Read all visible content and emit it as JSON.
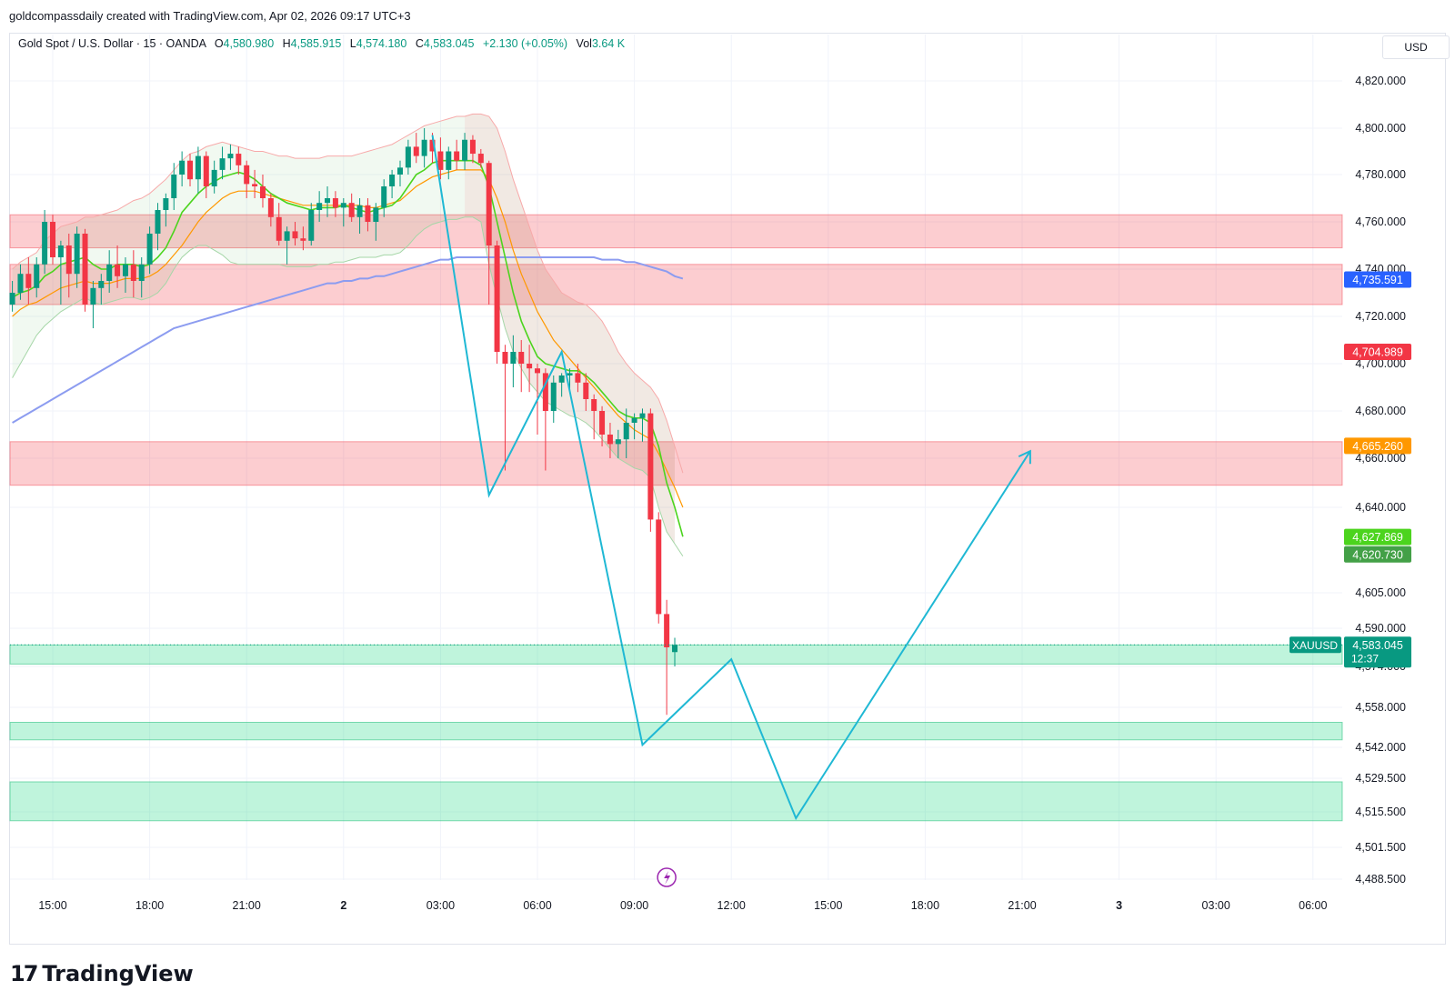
{
  "header": {
    "attribution": "goldcompassdaily created with TradingView.com, Apr 02, 2026 09:17 UTC+3"
  },
  "legend": {
    "symbol": "Gold Spot / U.S. Dollar · 15 · OANDA",
    "o_label": "O",
    "o_value": "4,580.980",
    "h_label": "H",
    "h_value": "4,585.915",
    "l_label": "L",
    "l_value": "4,574.180",
    "c_label": "C",
    "c_value": "4,583.045",
    "change": "+2.130 (+0.05%)",
    "vol_label": "Vol",
    "vol_value": "3.64 K"
  },
  "currency": "USD",
  "price_axis": {
    "ticks": [
      "4,820.000",
      "4,800.000",
      "4,780.000",
      "4,760.000",
      "4,740.000",
      "4,720.000",
      "4,700.000",
      "4,680.000",
      "4,660.000",
      "4,640.000",
      "4,605.000",
      "4,590.000",
      "4,574.000",
      "4,558.000",
      "4,542.000",
      "4,529.500",
      "4,515.500",
      "4,501.500",
      "4,488.500"
    ],
    "tick_values": [
      4820,
      4800,
      4780,
      4760,
      4740,
      4720,
      4700,
      4680,
      4660,
      4640,
      4605,
      4590,
      4574,
      4558,
      4542,
      4529.5,
      4515.5,
      4501.5,
      4488.5
    ]
  },
  "time_axis": {
    "labels": [
      "15:00",
      "18:00",
      "21:00",
      "2",
      "03:00",
      "06:00",
      "09:00",
      "12:00",
      "15:00",
      "18:00",
      "21:00",
      "3",
      "03:00",
      "06:00"
    ],
    "bold": [
      false,
      false,
      false,
      true,
      false,
      false,
      false,
      false,
      false,
      false,
      false,
      true,
      false,
      false
    ],
    "start": "15:00"
  },
  "price_tags": [
    {
      "label": "4,735.591",
      "color": "#2962ff",
      "price": 4735.591
    },
    {
      "label": "4,704.989",
      "color": "#f23645",
      "price": 4704.989
    },
    {
      "label": "4,665.260",
      "color": "#ff9800",
      "price": 4665.26
    },
    {
      "label": "4,627.869",
      "color": "#4cd41e",
      "price": 4627.869
    },
    {
      "label": "4,620.730",
      "color": "#43a047",
      "price": 4620.73
    }
  ],
  "current": {
    "symbol": "XAUUSD",
    "price": "4,583.045",
    "countdown": "12:37",
    "value": 4583.045,
    "color": "#089981"
  },
  "footer": {
    "logo_mark": "17",
    "logo_text": "TradingView"
  },
  "chart_data": {
    "type": "candlestick",
    "symbol": "XAUUSD",
    "timeframe": "15",
    "zones": [
      {
        "type": "resistance",
        "from": 4749,
        "to": 4763
      },
      {
        "type": "resistance",
        "from": 4725,
        "to": 4742
      },
      {
        "type": "resistance",
        "from": 4649,
        "to": 4667
      },
      {
        "type": "support",
        "from": 4575,
        "to": 4583
      },
      {
        "type": "support",
        "from": 4545,
        "to": 4552
      },
      {
        "type": "support",
        "from": 4512,
        "to": 4528
      }
    ],
    "forecast_path": [
      {
        "x": "Apr 2 02:45",
        "y": 4797
      },
      {
        "x": "Apr 2 04:30",
        "y": 4645
      },
      {
        "x": "Apr 2 06:45",
        "y": 4705
      },
      {
        "x": "Apr 2 09:15",
        "y": 4543
      },
      {
        "x": "Apr 2 12:00",
        "y": 4577
      },
      {
        "x": "Apr 2 14:00",
        "y": 4513
      },
      {
        "x": "Apr 2 21:15",
        "y": 4663
      }
    ],
    "candles": [
      [
        4725,
        4735,
        4722,
        4730
      ],
      [
        4730,
        4742,
        4727,
        4738
      ],
      [
        4738,
        4745,
        4725,
        4732
      ],
      [
        4732,
        4745,
        4728,
        4742
      ],
      [
        4742,
        4765,
        4738,
        4760
      ],
      [
        4760,
        4763,
        4742,
        4745
      ],
      [
        4745,
        4752,
        4725,
        4750
      ],
      [
        4750,
        4755,
        4728,
        4738
      ],
      [
        4738,
        4758,
        4732,
        4755
      ],
      [
        4755,
        4757,
        4722,
        4725
      ],
      [
        4725,
        4735,
        4715,
        4732
      ],
      [
        4732,
        4738,
        4725,
        4735
      ],
      [
        4735,
        4748,
        4730,
        4742
      ],
      [
        4742,
        4750,
        4732,
        4737
      ],
      [
        4737,
        4745,
        4730,
        4742
      ],
      [
        4742,
        4748,
        4728,
        4735
      ],
      [
        4735,
        4745,
        4728,
        4742
      ],
      [
        4742,
        4758,
        4738,
        4755
      ],
      [
        4755,
        4768,
        4748,
        4765
      ],
      [
        4765,
        4772,
        4758,
        4770
      ],
      [
        4770,
        4785,
        4765,
        4780
      ],
      [
        4780,
        4790,
        4775,
        4786
      ],
      [
        4786,
        4789,
        4775,
        4778
      ],
      [
        4778,
        4792,
        4772,
        4788
      ],
      [
        4788,
        4790,
        4770,
        4775
      ],
      [
        4775,
        4786,
        4772,
        4782
      ],
      [
        4782,
        4792,
        4778,
        4787
      ],
      [
        4787,
        4793,
        4782,
        4789
      ],
      [
        4789,
        4792,
        4780,
        4784
      ],
      [
        4784,
        4786,
        4770,
        4776
      ],
      [
        4776,
        4782,
        4770,
        4775
      ],
      [
        4775,
        4780,
        4766,
        4770
      ],
      [
        4770,
        4772,
        4758,
        4762
      ],
      [
        4762,
        4768,
        4750,
        4752
      ],
      [
        4752,
        4758,
        4742,
        4756
      ],
      [
        4756,
        4760,
        4750,
        4753
      ],
      [
        4753,
        4758,
        4748,
        4752
      ],
      [
        4752,
        4768,
        4750,
        4765
      ],
      [
        4765,
        4773,
        4760,
        4768
      ],
      [
        4768,
        4775,
        4762,
        4770
      ],
      [
        4770,
        4773,
        4762,
        4766
      ],
      [
        4766,
        4770,
        4758,
        4768
      ],
      [
        4768,
        4772,
        4760,
        4762
      ],
      [
        4762,
        4770,
        4755,
        4767
      ],
      [
        4767,
        4770,
        4756,
        4760
      ],
      [
        4760,
        4768,
        4752,
        4766
      ],
      [
        4766,
        4778,
        4762,
        4775
      ],
      [
        4775,
        4782,
        4770,
        4780
      ],
      [
        4780,
        4786,
        4775,
        4783
      ],
      [
        4783,
        4795,
        4780,
        4792
      ],
      [
        4792,
        4798,
        4785,
        4788
      ],
      [
        4788,
        4800,
        4783,
        4795
      ],
      [
        4795,
        4798,
        4785,
        4790
      ],
      [
        4790,
        4796,
        4778,
        4782
      ],
      [
        4782,
        4792,
        4778,
        4790
      ],
      [
        4790,
        4795,
        4782,
        4786
      ],
      [
        4786,
        4798,
        4782,
        4795
      ],
      [
        4795,
        4797,
        4785,
        4789
      ],
      [
        4789,
        4791,
        4783,
        4785
      ],
      [
        4785,
        4786,
        4725,
        4750
      ],
      [
        4750,
        4752,
        4700,
        4705
      ],
      [
        4705,
        4708,
        4655,
        4700
      ],
      [
        4700,
        4712,
        4690,
        4705
      ],
      [
        4705,
        4710,
        4688,
        4700
      ],
      [
        4700,
        4708,
        4688,
        4698
      ],
      [
        4698,
        4700,
        4670,
        4696
      ],
      [
        4696,
        4698,
        4655,
        4680
      ],
      [
        4680,
        4695,
        4675,
        4692
      ],
      [
        4692,
        4696,
        4686,
        4695
      ],
      [
        4695,
        4698,
        4688,
        4696
      ],
      [
        4696,
        4700,
        4688,
        4692
      ],
      [
        4692,
        4696,
        4680,
        4685
      ],
      [
        4685,
        4687,
        4668,
        4680
      ],
      [
        4680,
        4682,
        4665,
        4670
      ],
      [
        4670,
        4675,
        4660,
        4666
      ],
      [
        4666,
        4672,
        4660,
        4668
      ],
      [
        4668,
        4681,
        4660,
        4675
      ],
      [
        4675,
        4679,
        4668,
        4677
      ],
      [
        4677,
        4681,
        4667,
        4679
      ],
      [
        4679,
        4681,
        4630,
        4635
      ],
      [
        4635,
        4638,
        4592,
        4596
      ],
      [
        4596,
        4602,
        4555,
        4582
      ],
      [
        4580,
        4586,
        4574,
        4583
      ]
    ],
    "ema_green": [
      4728,
      4730,
      4731,
      4733,
      4737,
      4739,
      4742,
      4743,
      4744,
      4745,
      4742,
      4740,
      4740,
      4742,
      4742,
      4742,
      4741,
      4742,
      4745,
      4749,
      4756,
      4764,
      4768,
      4772,
      4775,
      4777,
      4779,
      4780,
      4781,
      4780,
      4778,
      4775,
      4772,
      4770,
      4768,
      4767,
      4766,
      4765,
      4766,
      4766,
      4766,
      4767,
      4766,
      4765,
      4764,
      4765,
      4766,
      4767,
      4770,
      4775,
      4780,
      4782,
      4785,
      4786,
      4786,
      4786,
      4786,
      4786,
      4784,
      4775,
      4760,
      4745,
      4730,
      4718,
      4710,
      4703,
      4700,
      4699,
      4698,
      4697,
      4697,
      4695,
      4692,
      4688,
      4684,
      4680,
      4678,
      4677,
      4677,
      4675,
      4665,
      4650,
      4640,
      4628
    ],
    "ema_orange": [
      4720,
      4723,
      4725,
      4726,
      4728,
      4730,
      4732,
      4733,
      4734,
      4735,
      4734,
      4734,
      4734,
      4735,
      4736,
      4736,
      4736,
      4737,
      4739,
      4742,
      4746,
      4750,
      4755,
      4760,
      4764,
      4767,
      4770,
      4772,
      4773,
      4773,
      4773,
      4772,
      4771,
      4770,
      4769,
      4768,
      4767,
      4767,
      4767,
      4767,
      4767,
      4767,
      4767,
      4767,
      4766,
      4766,
      4767,
      4768,
      4769,
      4772,
      4775,
      4777,
      4779,
      4780,
      4781,
      4782,
      4782,
      4782,
      4782,
      4778,
      4770,
      4760,
      4748,
      4738,
      4730,
      4722,
      4716,
      4710,
      4706,
      4702,
      4698,
      4694,
      4690,
      4686,
      4682,
      4678,
      4675,
      4672,
      4670,
      4668,
      4662,
      4655,
      4648,
      4640
    ],
    "bb_upper": [
      4740,
      4743,
      4745,
      4747,
      4752,
      4755,
      4758,
      4759,
      4760,
      4762,
      4762,
      4763,
      4764,
      4765,
      4767,
      4769,
      4770,
      4772,
      4775,
      4778,
      4782,
      4786,
      4789,
      4790,
      4792,
      4793,
      4794,
      4793,
      4792,
      4791,
      4790,
      4790,
      4789,
      4788,
      4788,
      4787,
      4787,
      4787,
      4787,
      4788,
      4788,
      4788,
      4788,
      4789,
      4790,
      4791,
      4792,
      4793,
      4795,
      4797,
      4799,
      4801,
      4802,
      4803,
      4804,
      4805,
      4805,
      4806,
      4806,
      4805,
      4800,
      4790,
      4778,
      4768,
      4758,
      4748,
      4740,
      4735,
      4730,
      4728,
      4726,
      4725,
      4722,
      4718,
      4712,
      4705,
      4700,
      4696,
      4693,
      4690,
      4685,
      4676,
      4665,
      4654
    ],
    "bb_lower": [
      4694,
      4700,
      4706,
      4712,
      4716,
      4719,
      4722,
      4724,
      4726,
      4728,
      4726,
      4725,
      4726,
      4727,
      4728,
      4728,
      4727,
      4728,
      4730,
      4734,
      4740,
      4745,
      4748,
      4750,
      4750,
      4748,
      4746,
      4743,
      4742,
      4742,
      4742,
      4742,
      4742,
      4742,
      4741,
      4741,
      4741,
      4741,
      4742,
      4742,
      4743,
      4743,
      4744,
      4745,
      4745,
      4745,
      4746,
      4746,
      4747,
      4750,
      4754,
      4757,
      4759,
      4760,
      4761,
      4761,
      4762,
      4762,
      4760,
      4742,
      4728,
      4715,
      4705,
      4698,
      4692,
      4688,
      4684,
      4682,
      4680,
      4678,
      4677,
      4675,
      4672,
      4668,
      4664,
      4660,
      4658,
      4656,
      4655,
      4652,
      4640,
      4630,
      4625,
      4620
    ],
    "sma_blue": [
      4675,
      4677,
      4679,
      4681,
      4683,
      4685,
      4687,
      4689,
      4691,
      4693,
      4695,
      4697,
      4699,
      4701,
      4703,
      4705,
      4707,
      4709,
      4711,
      4713,
      4715,
      4716,
      4717,
      4718,
      4719,
      4720,
      4721,
      4722,
      4723,
      4724,
      4725,
      4726,
      4727,
      4728,
      4729,
      4730,
      4731,
      4732,
      4733,
      4734,
      4734,
      4735,
      4735,
      4736,
      4736,
      4737,
      4737,
      4738,
      4739,
      4740,
      4741,
      4742,
      4743,
      4744,
      4744,
      4745,
      4745,
      4745,
      4745,
      4745,
      4745,
      4745,
      4745,
      4745,
      4745,
      4745,
      4745,
      4745,
      4745,
      4745,
      4745,
      4745,
      4745,
      4744,
      4744,
      4744,
      4743,
      4743,
      4742,
      4741,
      4740,
      4739,
      4737,
      4736
    ]
  }
}
